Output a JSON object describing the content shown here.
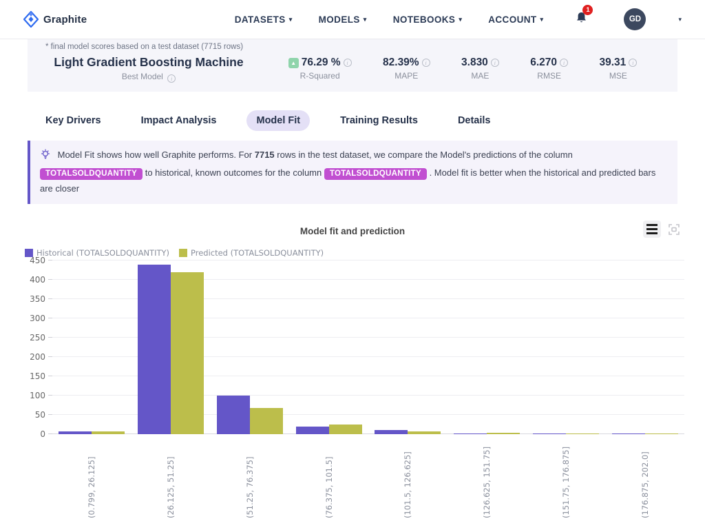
{
  "nav": {
    "brand": "Graphite",
    "items": [
      {
        "label": "DATASETS"
      },
      {
        "label": "MODELS"
      },
      {
        "label": "NOTEBOOKS"
      },
      {
        "label": "ACCOUNT"
      }
    ],
    "notification_count": "1",
    "avatar_initials": "GD"
  },
  "summary": {
    "note": "* final model scores based on a test dataset (7715 rows)",
    "model_name": "Light Gradient Boosting Machine",
    "model_subtitle": "Best Model",
    "metrics": [
      {
        "value": "76.29 %",
        "label": "R-Squared",
        "trend": "up"
      },
      {
        "value": "82.39%",
        "label": "MAPE"
      },
      {
        "value": "3.830",
        "label": "MAE"
      },
      {
        "value": "6.270",
        "label": "RMSE"
      },
      {
        "value": "39.31",
        "label": "MSE"
      }
    ]
  },
  "tabs": [
    {
      "label": "Key Drivers",
      "active": false
    },
    {
      "label": "Impact Analysis",
      "active": false
    },
    {
      "label": "Model Fit",
      "active": true
    },
    {
      "label": "Training Results",
      "active": false
    },
    {
      "label": "Details",
      "active": false
    }
  ],
  "banner": {
    "t1": "Model Fit shows how well Graphite performs. For",
    "rows": "7715",
    "t2": "rows in the test dataset, we compare the Model's predictions of the column",
    "badge1": "TOTALSOLDQUANTITY",
    "t3": "to historical, known outcomes for the column",
    "badge2": "TOTALSOLDQUANTITY",
    "t4": ". Model fit is better when the historical and predicted bars are closer"
  },
  "chart_data": {
    "type": "bar",
    "title": "Model fit and prediction",
    "categories": [
      "(0.799, 26.125]",
      "(26.125, 51.25]",
      "(51.25, 76.375]",
      "(76.375, 101.5]",
      "(101.5, 126.625]",
      "(126.625, 151.75]",
      "(151.75, 176.875]",
      "(176.875, 202.0]"
    ],
    "series": [
      {
        "name": "Historical (TOTALSOLDQUANTITY)",
        "color": "#6456c8",
        "values": [
          7,
          440,
          100,
          21,
          12,
          3,
          2,
          3
        ]
      },
      {
        "name": "Predicted (TOTALSOLDQUANTITY)",
        "color": "#bcbe4b",
        "values": [
          7,
          420,
          68,
          25,
          7,
          4,
          1,
          1
        ]
      }
    ],
    "xlabel": "",
    "ylabel": "",
    "ylim": [
      0,
      450
    ],
    "ytick_step": 50,
    "grid": true,
    "legend_position": "top-left"
  },
  "colors": {
    "accent_purple": "#6456c8",
    "badge_magenta": "#c14fd1",
    "trend_green": "#8fd4ab",
    "panel_bg": "#f5f5fa",
    "banner_bg": "#f5f3fb",
    "active_tab_bg": "#e4e0f6"
  }
}
